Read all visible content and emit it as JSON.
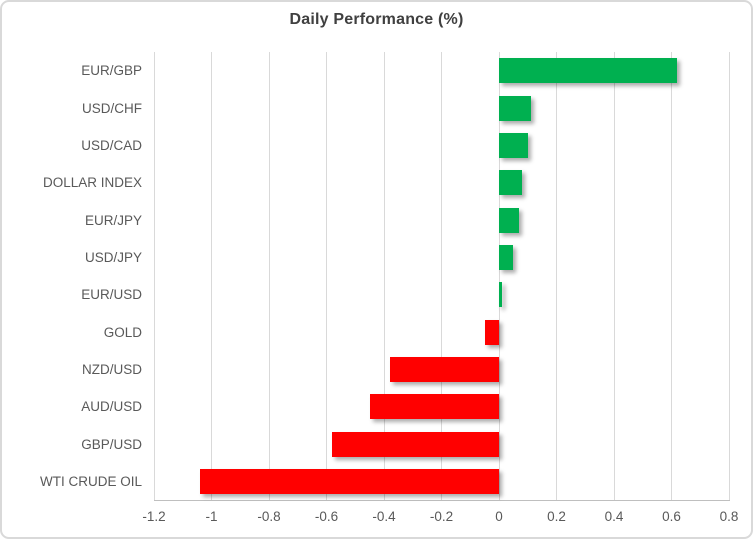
{
  "chart_data": {
    "type": "bar",
    "orientation": "horizontal",
    "title": "Daily Performance (%)",
    "categories": [
      "EUR/GBP",
      "USD/CHF",
      "USD/CAD",
      "DOLLAR INDEX",
      "EUR/JPY",
      "USD/JPY",
      "EUR/USD",
      "GOLD",
      "NZD/USD",
      "AUD/USD",
      "GBP/USD",
      "WTI CRUDE OIL"
    ],
    "values": [
      0.62,
      0.11,
      0.1,
      0.08,
      0.07,
      0.05,
      0.01,
      -0.05,
      -0.38,
      -0.45,
      -0.58,
      -1.04
    ],
    "xlabel": "",
    "ylabel": "",
    "xlim": [
      -1.2,
      0.8
    ],
    "x_ticks": [
      "-1.2",
      "-1",
      "-0.8",
      "-0.6",
      "-0.4",
      "-0.2",
      "0",
      "0.2",
      "0.4",
      "0.6",
      "0.8"
    ],
    "x_tick_values": [
      -1.2,
      -1.0,
      -0.8,
      -0.6,
      -0.4,
      -0.2,
      0,
      0.2,
      0.4,
      0.6,
      0.8
    ],
    "grid": true,
    "legend": false,
    "positive_color": "#00B050",
    "negative_color": "#FF0000",
    "gridline_color": "#D9D9D9",
    "label_color": "#595959",
    "title_color": "#404040"
  }
}
